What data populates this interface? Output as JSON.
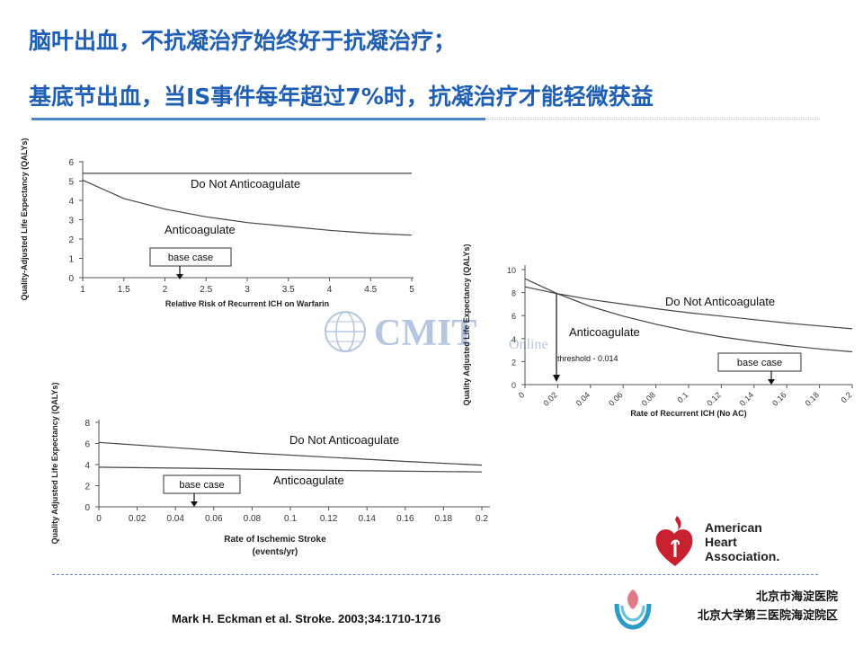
{
  "title": {
    "line1": "脑叶出血，不抗凝治疗始终好于抗凝治疗；",
    "line2": "基底节出血，当IS事件每年超过7%时，抗凝治疗才能轻微获益"
  },
  "watermark": {
    "text": "CMIT",
    "sub": "Online"
  },
  "citation": "Mark H. Eckman et al.  Stroke. 2003;34:1710-1716",
  "aha": {
    "line1": "American",
    "line2": "Heart",
    "line3": "Association."
  },
  "hospital": {
    "line1": "北京市海淀医院",
    "line2": "北京大学第三医院海淀院区"
  },
  "colors": {
    "title": "#1f5fb5",
    "rule": "#4a86c8",
    "aha_red": "#c8202f",
    "hospital_teal": "#2b9bc9",
    "hospital_pink": "#e07a8b"
  },
  "chart_data": [
    {
      "type": "line",
      "xlabel": "Relative Risk of Recurrent ICH on Warfarin",
      "ylabel": "Quality-Adjusted Life Expectancy (QALYs)",
      "xlim": [
        1,
        5
      ],
      "ylim": [
        0,
        6
      ],
      "xticks": [
        "1",
        "1.5",
        "2",
        "2.5",
        "3",
        "3.5",
        "4",
        "4.5",
        "5"
      ],
      "yticks": [
        "0",
        "1",
        "2",
        "3",
        "4",
        "5",
        "6"
      ],
      "grid": false,
      "series": [
        {
          "name": "Do Not Anticoagulate",
          "x": [
            1,
            5
          ],
          "y": [
            5.4,
            5.4
          ]
        },
        {
          "name": "Anticoagulate",
          "x": [
            1,
            1.5,
            2,
            2.5,
            3,
            3.5,
            4,
            4.5,
            5
          ],
          "y": [
            5.05,
            4.1,
            3.55,
            3.15,
            2.85,
            2.65,
            2.45,
            2.3,
            2.2
          ]
        }
      ],
      "annotations": [
        {
          "text": "base case",
          "x": 2
        }
      ]
    },
    {
      "type": "line",
      "xlabel": "Rate of Recurrent ICH (No AC)",
      "ylabel": "Quality Adjusted Life Expectancy (QALYs)",
      "xlim": [
        0,
        0.2
      ],
      "ylim": [
        0,
        10
      ],
      "xticks": [
        "0",
        "0.02",
        "0.04",
        "0.06",
        "0.08",
        "0.1",
        "0.12",
        "0.14",
        "0.16",
        "0.18",
        "0.2"
      ],
      "yticks": [
        "0",
        "2",
        "4",
        "6",
        "8",
        "10"
      ],
      "grid": false,
      "series": [
        {
          "name": "Do Not Anticoagulate",
          "x": [
            0,
            0.02,
            0.04,
            0.06,
            0.08,
            0.1,
            0.12,
            0.14,
            0.16,
            0.18,
            0.2
          ],
          "y": [
            8.5,
            7.9,
            7.4,
            7.0,
            6.6,
            6.25,
            5.95,
            5.65,
            5.35,
            5.1,
            4.85
          ]
        },
        {
          "name": "Anticoagulate",
          "x": [
            0,
            0.02,
            0.04,
            0.06,
            0.08,
            0.1,
            0.12,
            0.14,
            0.16,
            0.18,
            0.2
          ],
          "y": [
            9.2,
            7.9,
            6.8,
            5.95,
            5.25,
            4.65,
            4.15,
            3.75,
            3.4,
            3.1,
            2.85
          ]
        }
      ],
      "annotations": [
        {
          "text": "threshold - 0.014",
          "x": 0.022
        },
        {
          "text": "base case",
          "x": 0.155
        }
      ]
    },
    {
      "type": "line",
      "xlabel": "Rate of Ischemic Stroke (events/yr)",
      "ylabel": "Quality Adjusted Life Expectancy (QALYs)",
      "xlim": [
        0,
        0.2
      ],
      "ylim": [
        0,
        8
      ],
      "xticks": [
        "0",
        "0.02",
        "0.04",
        "0.06",
        "0.08",
        "0.1",
        "0.12",
        "0.14",
        "0.16",
        "0.18",
        "0.2"
      ],
      "yticks": [
        "0",
        "2",
        "4",
        "6",
        "8"
      ],
      "grid": false,
      "series": [
        {
          "name": "Do Not Anticoagulate",
          "x": [
            0,
            0.04,
            0.08,
            0.12,
            0.16,
            0.2
          ],
          "y": [
            6.1,
            5.6,
            5.1,
            4.7,
            4.3,
            3.95
          ]
        },
        {
          "name": "Anticoagulate",
          "x": [
            0,
            0.05,
            0.1,
            0.15,
            0.2
          ],
          "y": [
            3.75,
            3.65,
            3.5,
            3.4,
            3.3
          ]
        }
      ],
      "annotations": [
        {
          "text": "base case",
          "x": 0.05
        }
      ]
    }
  ]
}
